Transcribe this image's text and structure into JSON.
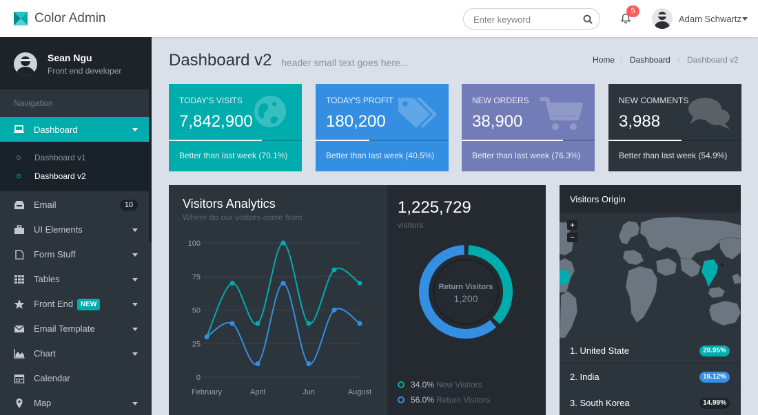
{
  "header": {
    "brand": "Color Admin",
    "search_placeholder": "Enter keyword",
    "notification_count": "5",
    "user_name": "Adam Schwartz"
  },
  "sidebar": {
    "profile": {
      "name": "Sean Ngu",
      "role": "Front end developer"
    },
    "nav_header": "Navigation",
    "active": {
      "label": "Dashboard",
      "icon": "laptop-icon"
    },
    "sub_items": [
      {
        "label": "Dashboard v1",
        "active": false
      },
      {
        "label": "Dashboard v2",
        "active": true
      }
    ],
    "items": [
      {
        "label": "Email",
        "icon": "inbox-icon",
        "count": "10"
      },
      {
        "label": "UI Elements",
        "icon": "suitcase-icon"
      },
      {
        "label": "Form Stuff",
        "icon": "file-icon"
      },
      {
        "label": "Tables",
        "icon": "table-icon"
      },
      {
        "label": "Front End",
        "icon": "star-icon",
        "tag": "NEW"
      },
      {
        "label": "Email Template",
        "icon": "envelope-icon"
      },
      {
        "label": "Chart",
        "icon": "area-chart-icon"
      },
      {
        "label": "Calendar",
        "icon": "calendar-icon"
      },
      {
        "label": "Map",
        "icon": "map-marker-icon"
      }
    ]
  },
  "page": {
    "title": "Dashboard v2",
    "subtitle": "header small text goes here...",
    "breadcrumb": [
      "Home",
      "Dashboard",
      "Dashboard v2"
    ]
  },
  "stats": [
    {
      "title": "TODAY'S VISITS",
      "value": "7,842,900",
      "desc": "Better than last week (70.1%)",
      "progress": 70.1,
      "color": "#00acac",
      "icon": "globe-icon"
    },
    {
      "title": "TODAY'S PROFIT",
      "value": "180,200",
      "desc": "Better than last week (40.5%)",
      "progress": 40.5,
      "color": "#348fe2",
      "icon": "tags-icon"
    },
    {
      "title": "NEW ORDERS",
      "value": "38,900",
      "desc": "Better than last week (76.3%)",
      "progress": 76.3,
      "color": "#727cb6",
      "icon": "shopping-cart-icon"
    },
    {
      "title": "NEW COMMENTS",
      "value": "3,988",
      "desc": "Better than last week (54.9%)",
      "progress": 54.9,
      "color": "#2d353c",
      "icon": "comments-icon"
    }
  ],
  "analytics": {
    "title": "Visitors Analytics",
    "subtitle": "Where do our visitors come from",
    "total": "1,225,729",
    "total_unit": "visitors",
    "donut_label": "Return Visitors",
    "donut_value": "1,200",
    "legend": [
      {
        "pct": "34.0%",
        "name": "New Visitors",
        "color": "#00acac"
      },
      {
        "pct": "56.0%",
        "name": "Return Visitors",
        "color": "#348fe2"
      }
    ]
  },
  "chart_data": {
    "type": "line",
    "x_ticks": [
      "February",
      "April",
      "Jun",
      "August"
    ],
    "x_tick_positions": [
      1,
      3,
      5,
      7
    ],
    "ylim": [
      0,
      100
    ],
    "y_ticks": [
      0,
      25,
      50,
      75,
      100
    ],
    "grid": true,
    "series": [
      {
        "values": [
          30,
          70,
          40,
          100,
          40,
          80,
          70
        ],
        "x": [
          1,
          2,
          3,
          4,
          5,
          6,
          7
        ],
        "color": "#00acac"
      },
      {
        "values": [
          30,
          40,
          10,
          70,
          10,
          50,
          40
        ],
        "x": [
          1,
          2,
          3,
          4,
          5,
          6,
          7
        ],
        "color": "#348fe2"
      }
    ],
    "donut": {
      "values": [
        34,
        56
      ],
      "colors": [
        "#00acac",
        "#348fe2"
      ]
    }
  },
  "origin": {
    "title": "Visitors Origin",
    "zoom_in": "+",
    "zoom_out": "−",
    "list": [
      {
        "label": "1. United State",
        "pct": "20.95%",
        "color": "#00acac"
      },
      {
        "label": "2. India",
        "pct": "16.12%",
        "color": "#348fe2"
      },
      {
        "label": "3. South Korea",
        "pct": "14.99%",
        "color": "#1d2328"
      }
    ]
  }
}
